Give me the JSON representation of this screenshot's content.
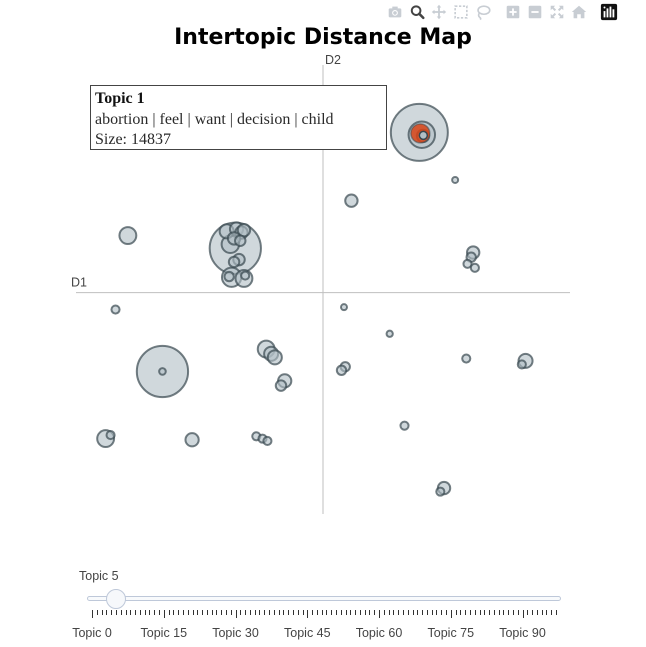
{
  "modebar": {
    "buttons": [
      {
        "name": "camera-icon",
        "title": "Download plot as a png",
        "active": false
      },
      {
        "name": "zoom-icon",
        "title": "Zoom",
        "active": true
      },
      {
        "name": "pan-icon",
        "title": "Pan",
        "active": false
      },
      {
        "name": "box-select-icon",
        "title": "Box Select",
        "active": false
      },
      {
        "name": "lasso-select-icon",
        "title": "Lasso Select",
        "active": false
      },
      {
        "name": "zoom-in-icon",
        "title": "Zoom in",
        "active": false
      },
      {
        "name": "zoom-out-icon",
        "title": "Zoom out",
        "active": false
      },
      {
        "name": "autoscale-icon",
        "title": "Autoscale",
        "active": false
      },
      {
        "name": "reset-axes-icon",
        "title": "Reset axes",
        "active": false
      },
      {
        "name": "plotly-logo-icon",
        "title": "Produced with Plotly",
        "active": false
      }
    ]
  },
  "chart_data": {
    "type": "scatter",
    "title": "Intertopic Distance Map",
    "xlabel": "D1",
    "ylabel": "D2",
    "xlim": [
      -10,
      10
    ],
    "ylim": [
      -9.4,
      10
    ],
    "grid": false,
    "colors": {
      "bubble_fill": "#b0bec5",
      "bubble_stroke": "#37474f",
      "selected_fill": "#d84315",
      "axis_line": "#bfbfbf"
    },
    "points": [
      {
        "x": 3.9,
        "y": 6.8,
        "size": 14837,
        "selected": true
      },
      {
        "x": 4.0,
        "y": 6.7,
        "size": 3200
      },
      {
        "x": 4.05,
        "y": 6.65,
        "size": 700
      },
      {
        "x": 5.35,
        "y": 4.78,
        "size": 120
      },
      {
        "x": 1.15,
        "y": 3.9,
        "size": 700
      },
      {
        "x": -7.9,
        "y": 2.42,
        "size": 1300
      },
      {
        "x": -3.55,
        "y": 1.88,
        "size": 12000
      },
      {
        "x": -3.9,
        "y": 2.6,
        "size": 900
      },
      {
        "x": -3.5,
        "y": 2.7,
        "size": 800
      },
      {
        "x": -3.3,
        "y": 2.55,
        "size": 700
      },
      {
        "x": -3.2,
        "y": 2.65,
        "size": 700
      },
      {
        "x": -3.6,
        "y": 2.3,
        "size": 700
      },
      {
        "x": -3.35,
        "y": 2.2,
        "size": 500
      },
      {
        "x": -3.75,
        "y": 2.05,
        "size": 1400
      },
      {
        "x": -3.4,
        "y": 1.4,
        "size": 600
      },
      {
        "x": -3.6,
        "y": 1.3,
        "size": 500
      },
      {
        "x": -3.7,
        "y": 0.65,
        "size": 1700
      },
      {
        "x": -3.2,
        "y": 0.6,
        "size": 1300
      },
      {
        "x": -3.8,
        "y": 0.68,
        "size": 400
      },
      {
        "x": -3.15,
        "y": 0.72,
        "size": 300
      },
      {
        "x": 6.08,
        "y": 1.7,
        "size": 700
      },
      {
        "x": 6.0,
        "y": 1.5,
        "size": 400
      },
      {
        "x": 5.85,
        "y": 1.22,
        "size": 300
      },
      {
        "x": 6.15,
        "y": 1.05,
        "size": 300
      },
      {
        "x": -8.4,
        "y": -0.72,
        "size": 300
      },
      {
        "x": 0.85,
        "y": -0.62,
        "size": 120
      },
      {
        "x": 2.7,
        "y": -1.75,
        "size": 180
      },
      {
        "x": -6.5,
        "y": -3.35,
        "size": 12000
      },
      {
        "x": -6.5,
        "y": -3.35,
        "size": 200
      },
      {
        "x": -2.3,
        "y": -2.4,
        "size": 1300
      },
      {
        "x": -2.1,
        "y": -2.6,
        "size": 900
      },
      {
        "x": -1.95,
        "y": -2.75,
        "size": 900
      },
      {
        "x": -1.55,
        "y": -3.75,
        "size": 800
      },
      {
        "x": -1.7,
        "y": -3.95,
        "size": 500
      },
      {
        "x": 0.9,
        "y": -3.15,
        "size": 400
      },
      {
        "x": 0.75,
        "y": -3.3,
        "size": 400
      },
      {
        "x": 5.8,
        "y": -2.8,
        "size": 300
      },
      {
        "x": 8.2,
        "y": -2.9,
        "size": 900
      },
      {
        "x": 8.05,
        "y": -3.05,
        "size": 300
      },
      {
        "x": -8.8,
        "y": -6.2,
        "size": 1300
      },
      {
        "x": -8.6,
        "y": -6.05,
        "size": 300
      },
      {
        "x": -5.3,
        "y": -6.25,
        "size": 800
      },
      {
        "x": -2.7,
        "y": -6.1,
        "size": 300
      },
      {
        "x": -2.45,
        "y": -6.2,
        "size": 300
      },
      {
        "x": -2.25,
        "y": -6.3,
        "size": 300
      },
      {
        "x": 3.3,
        "y": -5.65,
        "size": 300
      },
      {
        "x": 4.9,
        "y": -8.3,
        "size": 700
      },
      {
        "x": 4.75,
        "y": -8.45,
        "size": 300
      }
    ],
    "hover": {
      "title": "Topic 1",
      "words": "abortion | feel | want | decision | child",
      "size_line": "Size: 14837"
    }
  },
  "slider": {
    "current_label": "Topic 5",
    "value": 5,
    "min": 0,
    "max": 97,
    "steps": [
      {
        "label": "Topic 0",
        "value": 0
      },
      {
        "label": "Topic 15",
        "value": 15
      },
      {
        "label": "Topic 30",
        "value": 30
      },
      {
        "label": "Topic 45",
        "value": 45
      },
      {
        "label": "Topic 60",
        "value": 60
      },
      {
        "label": "Topic 75",
        "value": 75
      },
      {
        "label": "Topic 90",
        "value": 90
      }
    ]
  }
}
